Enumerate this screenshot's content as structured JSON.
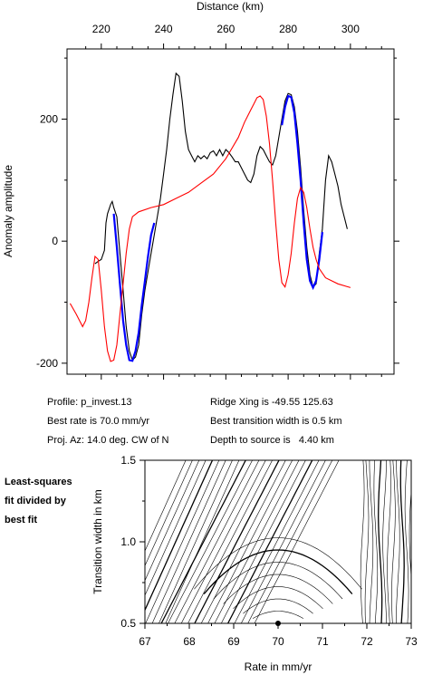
{
  "chart_data": [
    {
      "type": "line",
      "xlabel": "Distance (km)",
      "ylabel": "Anomaly amplitude",
      "xlim": [
        209,
        314
      ],
      "ylim": [
        -218,
        315
      ],
      "xticks": [
        220,
        240,
        260,
        280,
        300
      ],
      "yticks": [
        -200,
        0,
        200
      ],
      "series": [
        {
          "color": "#000000",
          "points": [
            [
              218,
              -37
            ],
            [
              219,
              -33
            ],
            [
              220,
              -30
            ],
            [
              221,
              -15
            ],
            [
              221.5,
              30
            ],
            [
              222,
              45
            ],
            [
              223,
              60
            ],
            [
              223.5,
              65
            ],
            [
              224,
              55
            ],
            [
              225,
              40
            ],
            [
              226,
              -20
            ],
            [
              227,
              -80
            ],
            [
              228,
              -140
            ],
            [
              229,
              -180
            ],
            [
              230,
              -195
            ],
            [
              231,
              -190
            ],
            [
              232,
              -170
            ],
            [
              233,
              -120
            ],
            [
              234,
              -80
            ],
            [
              235,
              -50
            ],
            [
              236,
              -20
            ],
            [
              237,
              10
            ],
            [
              238,
              40
            ],
            [
              239,
              70
            ],
            [
              240,
              110
            ],
            [
              241,
              150
            ],
            [
              242,
              200
            ],
            [
              243,
              240
            ],
            [
              244,
              275
            ],
            [
              245,
              270
            ],
            [
              246,
              230
            ],
            [
              247,
              180
            ],
            [
              248,
              150
            ],
            [
              249,
              140
            ],
            [
              250,
              130
            ],
            [
              251,
              140
            ],
            [
              252,
              135
            ],
            [
              253,
              140
            ],
            [
              254,
              135
            ],
            [
              255,
              145
            ],
            [
              256,
              148
            ],
            [
              257,
              140
            ],
            [
              258,
              150
            ],
            [
              259,
              140
            ],
            [
              260,
              150
            ],
            [
              261,
              145
            ],
            [
              262,
              138
            ],
            [
              263,
              130
            ],
            [
              264,
              130
            ],
            [
              265,
              120
            ],
            [
              266,
              110
            ],
            [
              267,
              100
            ],
            [
              268,
              96
            ],
            [
              269,
              110
            ],
            [
              270,
              140
            ],
            [
              271,
              155
            ],
            [
              272,
              150
            ],
            [
              273,
              140
            ],
            [
              274,
              130
            ],
            [
              275,
              125
            ],
            [
              276,
              140
            ],
            [
              277,
              170
            ],
            [
              278,
              200
            ],
            [
              279,
              230
            ],
            [
              280,
              242
            ],
            [
              281,
              240
            ],
            [
              282,
              220
            ],
            [
              283,
              180
            ],
            [
              284,
              120
            ],
            [
              285,
              50
            ],
            [
              286,
              -10
            ],
            [
              287,
              -55
            ],
            [
              288,
              -75
            ],
            [
              289,
              -70
            ],
            [
              290,
              -20
            ],
            [
              291,
              20
            ],
            [
              292,
              100
            ],
            [
              293,
              140
            ],
            [
              294,
              130
            ],
            [
              295,
              110
            ],
            [
              296,
              90
            ],
            [
              297,
              60
            ],
            [
              298,
              40
            ],
            [
              299,
              20
            ]
          ]
        },
        {
          "color": "#0000ff",
          "points": [
            [
              224,
              45
            ],
            [
              225,
              -10
            ],
            [
              226,
              -70
            ],
            [
              227,
              -130
            ],
            [
              228,
              -170
            ],
            [
              229,
              -195
            ],
            [
              230,
              -196
            ],
            [
              231,
              -180
            ],
            [
              232,
              -150
            ],
            [
              233,
              -105
            ],
            [
              234,
              -65
            ],
            [
              235,
              -25
            ],
            [
              236,
              10
            ],
            [
              237,
              30
            ],
            [
              278,
              190
            ],
            [
              279,
              220
            ],
            [
              280,
              238
            ],
            [
              281,
              236
            ],
            [
              282,
              210
            ],
            [
              283,
              160
            ],
            [
              284,
              100
            ],
            [
              285,
              30
            ],
            [
              286,
              -30
            ],
            [
              287,
              -65
            ],
            [
              288,
              -76
            ],
            [
              289,
              -65
            ],
            [
              290,
              -30
            ],
            [
              291,
              15
            ]
          ]
        },
        {
          "color": "#ff0000",
          "points": [
            [
              210,
              -102
            ],
            [
              212,
              -120
            ],
            [
              214,
              -140
            ],
            [
              215,
              -130
            ],
            [
              216,
              -100
            ],
            [
              217,
              -60
            ],
            [
              218,
              -25
            ],
            [
              219,
              -30
            ],
            [
              220,
              -80
            ],
            [
              221,
              -140
            ],
            [
              222,
              -180
            ],
            [
              223,
              -197
            ],
            [
              224,
              -195
            ],
            [
              225,
              -170
            ],
            [
              226,
              -120
            ],
            [
              227,
              -70
            ],
            [
              228,
              -20
            ],
            [
              229,
              20
            ],
            [
              230,
              40
            ],
            [
              232,
              48
            ],
            [
              236,
              55
            ],
            [
              240,
              60
            ],
            [
              244,
              70
            ],
            [
              248,
              80
            ],
            [
              252,
              95
            ],
            [
              256,
              110
            ],
            [
              260,
              135
            ],
            [
              264,
              170
            ],
            [
              266,
              195
            ],
            [
              268,
              215
            ],
            [
              269,
              225
            ],
            [
              270,
              235
            ],
            [
              271,
              238
            ],
            [
              272,
              232
            ],
            [
              273,
              205
            ],
            [
              274,
              160
            ],
            [
              275,
              100
            ],
            [
              276,
              30
            ],
            [
              277,
              -30
            ],
            [
              278,
              -68
            ],
            [
              279,
              -75
            ],
            [
              280,
              -55
            ],
            [
              281,
              -20
            ],
            [
              282,
              30
            ],
            [
              283,
              70
            ],
            [
              284,
              88
            ],
            [
              285,
              80
            ],
            [
              286,
              55
            ],
            [
              287,
              20
            ],
            [
              288,
              -10
            ],
            [
              289,
              -30
            ],
            [
              290,
              -45
            ],
            [
              292,
              -60
            ],
            [
              296,
              -70
            ],
            [
              300,
              -76
            ]
          ]
        }
      ]
    },
    {
      "type": "contour",
      "xlabel": "Rate in mm/yr",
      "ylabel": "Transition width in km",
      "xlim": [
        67,
        73
      ],
      "ylim": [
        0.5,
        1.5
      ],
      "xticks": [
        67,
        68,
        69,
        70,
        71,
        72,
        73
      ],
      "yticks": [
        0.5,
        1.0,
        1.5
      ],
      "best_fit_marker": [
        70.0,
        0.5
      ]
    }
  ],
  "info": {
    "profile": "Profile: p_invest.13",
    "best_rate": "Best rate is 70.0 mm/yr",
    "proj_az": "Proj. Az: 14.0 deg. CW of N",
    "ridge_xing": "Ridge Xing is -49.55 125.63",
    "best_width": "Best transition width is 0.5 km",
    "depth": "Depth to source is   4.40 km"
  },
  "side_label": [
    "Least-squares",
    "fit divided by",
    "best fit"
  ]
}
